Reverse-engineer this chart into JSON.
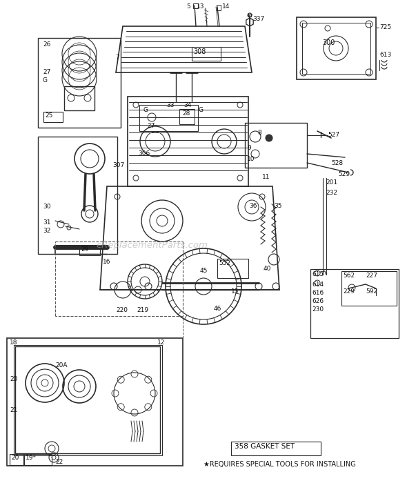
{
  "bg_color": "#ffffff",
  "line_color": "#2a2a2a",
  "text_color": "#111111",
  "footnote1": "358 GASKET SET",
  "footnote2": "★REQUIRES SPECIAL TOOLS FOR INSTALLING",
  "watermark": "eReplacementParts.com"
}
